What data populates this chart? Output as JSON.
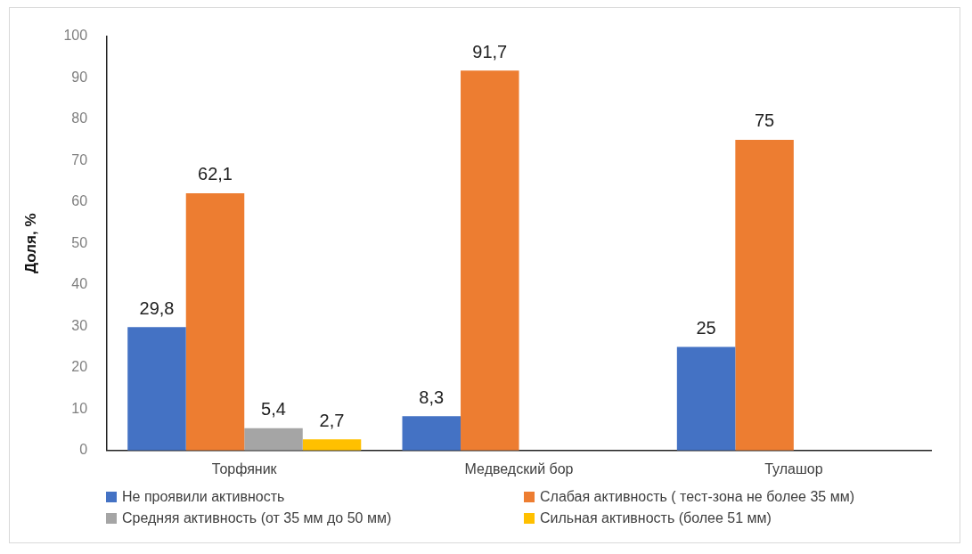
{
  "chart_data": {
    "type": "bar",
    "ylabel": "Доля, %",
    "categories": [
      "Торфяник",
      "Медведский бор",
      "Тулашор"
    ],
    "series": [
      {
        "name": "Не проявили активность",
        "color": "#4472c4",
        "values": [
          29.8,
          8.3,
          25
        ],
        "value_labels": [
          "29,8",
          "8,3",
          "25"
        ]
      },
      {
        "name": "Слабая активность ( тест-зона не более 35 мм)",
        "color": "#ed7d31",
        "values": [
          62.1,
          91.7,
          75
        ],
        "value_labels": [
          "62,1",
          "91,7",
          "75"
        ]
      },
      {
        "name": "Средняя активность (от 35 мм до 50 мм)",
        "color": "#a5a5a5",
        "values": [
          5.4,
          null,
          null
        ],
        "value_labels": [
          "5,4",
          null,
          null
        ]
      },
      {
        "name": "Сильная активность (более 51 мм)",
        "color": "#ffc000",
        "values": [
          2.7,
          null,
          null
        ],
        "value_labels": [
          "2,7",
          null,
          null
        ]
      }
    ],
    "ylim": [
      0,
      100
    ],
    "yticks": [
      0,
      10,
      20,
      30,
      40,
      50,
      60,
      70,
      80,
      90,
      100
    ],
    "grid": false,
    "legend": "bottom"
  }
}
